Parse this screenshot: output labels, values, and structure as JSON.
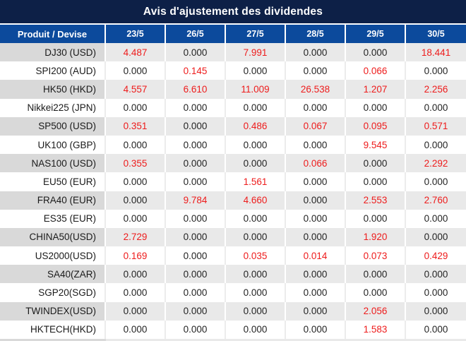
{
  "title": "Avis d'ajustement des dividendes",
  "table": {
    "product_header": "Produit / Devise",
    "date_headers": [
      "23/5",
      "26/5",
      "27/5",
      "28/5",
      "29/5",
      "30/5"
    ],
    "rows": [
      {
        "product": "DJ30 (USD)",
        "values": [
          "4.487",
          "0.000",
          "7.991",
          "0.000",
          "0.000",
          "18.441"
        ]
      },
      {
        "product": "SPI200 (AUD)",
        "values": [
          "0.000",
          "0.145",
          "0.000",
          "0.000",
          "0.066",
          "0.000"
        ]
      },
      {
        "product": "HK50 (HKD)",
        "values": [
          "4.557",
          "6.610",
          "11.009",
          "26.538",
          "1.207",
          "2.256"
        ]
      },
      {
        "product": "Nikkei225 (JPN)",
        "values": [
          "0.000",
          "0.000",
          "0.000",
          "0.000",
          "0.000",
          "0.000"
        ]
      },
      {
        "product": "SP500 (USD)",
        "values": [
          "0.351",
          "0.000",
          "0.486",
          "0.067",
          "0.095",
          "0.571"
        ]
      },
      {
        "product": "UK100 (GBP)",
        "values": [
          "0.000",
          "0.000",
          "0.000",
          "0.000",
          "9.545",
          "0.000"
        ]
      },
      {
        "product": "NAS100 (USD)",
        "values": [
          "0.355",
          "0.000",
          "0.000",
          "0.066",
          "0.000",
          "2.292"
        ]
      },
      {
        "product": "EU50 (EUR)",
        "values": [
          "0.000",
          "0.000",
          "1.561",
          "0.000",
          "0.000",
          "0.000"
        ]
      },
      {
        "product": "FRA40 (EUR)",
        "values": [
          "0.000",
          "9.784",
          "4.660",
          "0.000",
          "2.553",
          "2.760"
        ]
      },
      {
        "product": "ES35 (EUR)",
        "values": [
          "0.000",
          "0.000",
          "0.000",
          "0.000",
          "0.000",
          "0.000"
        ]
      },
      {
        "product": "CHINA50(USD)",
        "values": [
          "2.729",
          "0.000",
          "0.000",
          "0.000",
          "1.920",
          "0.000"
        ]
      },
      {
        "product": "US2000(USD)",
        "values": [
          "0.169",
          "0.000",
          "0.035",
          "0.014",
          "0.073",
          "0.429"
        ]
      },
      {
        "product": "SA40(ZAR)",
        "values": [
          "0.000",
          "0.000",
          "0.000",
          "0.000",
          "0.000",
          "0.000"
        ]
      },
      {
        "product": "SGP20(SGD)",
        "values": [
          "0.000",
          "0.000",
          "0.000",
          "0.000",
          "0.000",
          "0.000"
        ]
      },
      {
        "product": "TWINDEX(USD)",
        "values": [
          "0.000",
          "0.000",
          "0.000",
          "0.000",
          "2.056",
          "0.000"
        ]
      },
      {
        "product": "HKTECH(HKD)",
        "values": [
          "0.000",
          "0.000",
          "0.000",
          "0.000",
          "1.583",
          "0.000"
        ]
      }
    ]
  },
  "colors": {
    "title_bg": "#0d2047",
    "header_bg": "#0c4a9c",
    "row_gray_product": "#d9d9d9",
    "row_gray_data": "#e9e9e9",
    "row_white": "#ffffff",
    "value_zero_text": "#242424",
    "value_nonzero_text": "#ee1c1c"
  }
}
